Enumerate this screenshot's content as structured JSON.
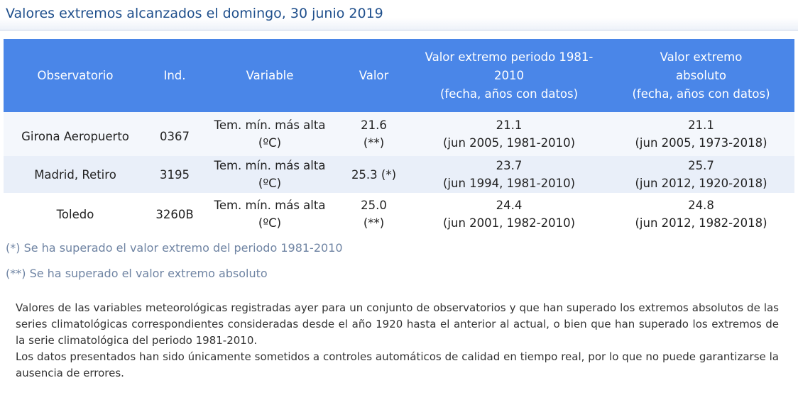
{
  "title": "Valores extremos alcanzados el domingo, 30 junio 2019",
  "table": {
    "headers": {
      "observatorio": "Observatorio",
      "ind": "Ind.",
      "variable": "Variable",
      "valor": "Valor",
      "periodo_line1": "Valor extremo periodo 1981-",
      "periodo_line2": "2010",
      "periodo_line3": "(fecha, años con datos)",
      "absoluto_line1": "Valor extremo",
      "absoluto_line2": "absoluto",
      "absoluto_line3": "(fecha, años con datos)"
    },
    "rows": [
      {
        "observatorio": "Girona Aeropuerto",
        "ind": "0367",
        "variable_line1": "Tem. mín. más alta",
        "variable_line2": "(ºC)",
        "valor_line1": "21.6",
        "valor_line2": "(**)",
        "periodo_value": "21.1",
        "periodo_date": "(jun 2005, 1981-2010)",
        "absoluto_value": "21.1",
        "absoluto_date": "(jun 2005, 1973-2018)"
      },
      {
        "observatorio": "Madrid, Retiro",
        "ind": "3195",
        "variable_line1": "Tem. mín. más alta",
        "variable_line2": "(ºC)",
        "valor_line1": "25.3 (*)",
        "valor_line2": "",
        "periodo_value": "23.7",
        "periodo_date": "(jun 1994, 1981-2010)",
        "absoluto_value": "25.7",
        "absoluto_date": "(jun 2012, 1920-2018)"
      },
      {
        "observatorio": "Toledo",
        "ind": "3260B",
        "variable_line1": "Tem. mín. más alta",
        "variable_line2": "(ºC)",
        "valor_line1": "25.0",
        "valor_line2": "(**)",
        "periodo_value": "24.4",
        "periodo_date": "(jun 2001, 1982-2010)",
        "absoluto_value": "24.8",
        "absoluto_date": "(jun 2012, 1982-2018)"
      }
    ]
  },
  "notes": [
    "(*) Se ha superado el valor extremo del periodo 1981-2010",
    "(**) Se ha superado el valor extremo absoluto"
  ],
  "description": [
    "Valores de las variables meteorológicas registradas ayer para un conjunto de observatorios y que han superado los extremos absolutos de las series climatológicas correspondientes consideradas desde el año 1920 hasta el anterior al actual, o bien que han superado los extremos de la serie climatológica del periodo 1981-2010.",
    "Los datos presentados han sido únicamente sometidos a controles automáticos de calidad en tiempo real, por lo que no puede garantizarse la ausencia de errores."
  ],
  "colors": {
    "header_bg": "#4a86e8",
    "title_text": "#1f4f8c",
    "note_text": "#6f84a3",
    "row_alt_1": "#f4f7fc",
    "row_alt_2": "#e9eff9"
  }
}
